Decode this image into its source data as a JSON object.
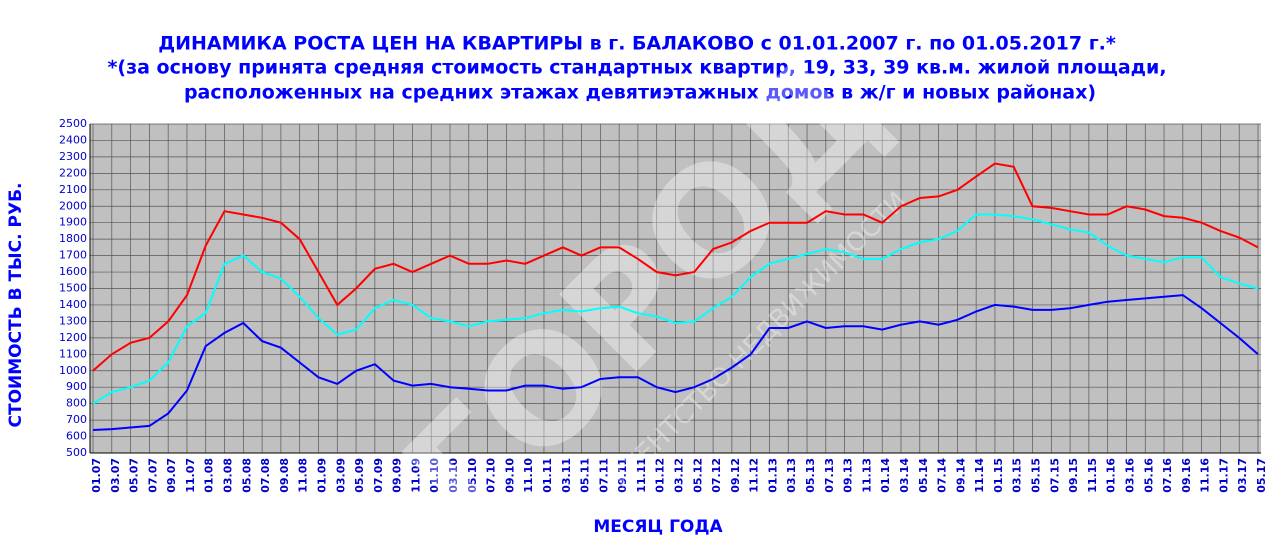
{
  "chart_data": {
    "type": "line",
    "title": [
      "ДИНАМИКА РОСТА ЦЕН НА КВАРТИРЫ в г. БАЛАКОВО с 01.01.2007 г. по 01.05.2017 г.*",
      "*(за основу принята средняя стоимость стандартных квартир, 19, 33, 39 кв.м. жилой площади,",
      "расположенных  на средних этажах девятиэтажных домов в ж/г и новых районах)"
    ],
    "y_label": "СТОИМОСТЬ В ТЫС. РУБ.",
    "x_label": "МЕСЯЦ ГОДА",
    "watermark": [
      "ГОРОД",
      "АГЕНТСТВО НЕДВИЖИМОСТИ"
    ],
    "categories": [
      "01.07",
      "03.07",
      "05.07",
      "07.07",
      "09.07",
      "11.07",
      "01.08",
      "03.08",
      "05.08",
      "07.08",
      "09.08",
      "11.08",
      "01.09",
      "03.09",
      "05.09",
      "07.09",
      "09.09",
      "11.09",
      "01.10",
      "03.10",
      "05.10",
      "07.10",
      "09.10",
      "11.10",
      "01.11",
      "03.11",
      "05.11",
      "07.11",
      "09.11",
      "11.11",
      "01.12",
      "03.12",
      "05.12",
      "07.12",
      "09.12",
      "11.12",
      "01.13",
      "03.13",
      "05.13",
      "07.13",
      "09.13",
      "11.13",
      "01.14",
      "03.14",
      "05.14",
      "07.14",
      "09.14",
      "11.14",
      "01.15",
      "03.15",
      "05.15",
      "07.15",
      "09.15",
      "11.15",
      "01.16",
      "03.16",
      "05.16",
      "07.16",
      "09.16",
      "11.16",
      "01.17",
      "03.17",
      "05.17"
    ],
    "series": [
      {
        "color": "#ff0000",
        "values": [
          1000,
          1100,
          1170,
          1200,
          1300,
          1460,
          1760,
          1970,
          1950,
          1930,
          1900,
          1800,
          1600,
          1400,
          1500,
          1620,
          1650,
          1600,
          1650,
          1700,
          1650,
          1650,
          1670,
          1650,
          1700,
          1750,
          1700,
          1750,
          1750,
          1680,
          1600,
          1580,
          1600,
          1740,
          1780,
          1850,
          1900,
          1900,
          1900,
          1970,
          1950,
          1950,
          1900,
          2000,
          2050,
          2060,
          2100,
          2180,
          2260,
          2240,
          2000,
          1990,
          1970,
          1950,
          1950,
          2000,
          1980,
          1940,
          1930,
          1900,
          1850,
          1810,
          1750
        ]
      },
      {
        "color": "#00ffff",
        "values": [
          800,
          870,
          900,
          940,
          1050,
          1270,
          1350,
          1650,
          1700,
          1600,
          1560,
          1450,
          1320,
          1220,
          1250,
          1380,
          1430,
          1400,
          1320,
          1300,
          1270,
          1300,
          1310,
          1320,
          1350,
          1370,
          1360,
          1380,
          1390,
          1350,
          1330,
          1290,
          1300,
          1380,
          1450,
          1570,
          1650,
          1680,
          1710,
          1740,
          1720,
          1680,
          1680,
          1740,
          1780,
          1800,
          1850,
          1950,
          1950,
          1940,
          1920,
          1890,
          1860,
          1840,
          1760,
          1700,
          1680,
          1660,
          1690,
          1690,
          1570,
          1530,
          1500
        ]
      },
      {
        "color": "#0000ff",
        "values": [
          640,
          645,
          655,
          665,
          740,
          880,
          1150,
          1230,
          1290,
          1180,
          1140,
          1050,
          960,
          920,
          1000,
          1040,
          940,
          910,
          920,
          900,
          890,
          880,
          880,
          910,
          910,
          890,
          900,
          950,
          960,
          960,
          900,
          870,
          900,
          950,
          1020,
          1100,
          1260,
          1260,
          1300,
          1260,
          1270,
          1270,
          1250,
          1280,
          1300,
          1280,
          1310,
          1360,
          1400,
          1390,
          1370,
          1370,
          1380,
          1400,
          1420,
          1430,
          1440,
          1450,
          1460,
          1380,
          1290,
          1200,
          1100
        ]
      }
    ],
    "ylim": [
      500,
      2500
    ],
    "yticks": [
      500,
      600,
      700,
      800,
      900,
      1000,
      1100,
      1200,
      1300,
      1400,
      1500,
      1600,
      1700,
      1800,
      1900,
      2000,
      2100,
      2200,
      2300,
      2400,
      2500
    ],
    "grid": true,
    "plot_background": "#c0c0c0"
  }
}
